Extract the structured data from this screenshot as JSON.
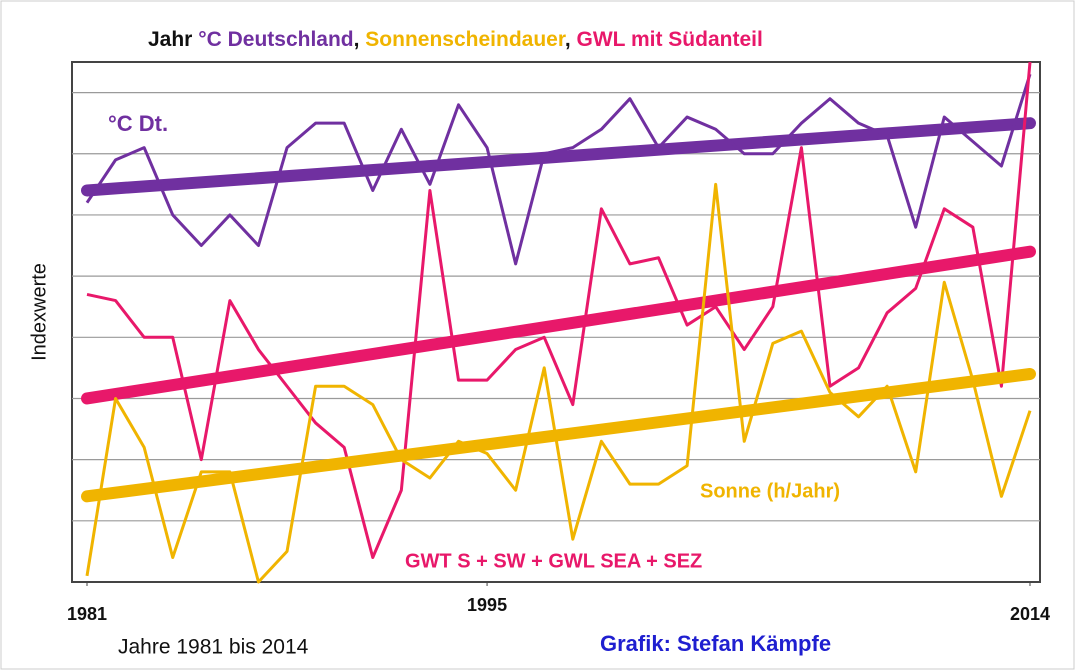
{
  "chart_data": {
    "type": "line",
    "title_parts": [
      {
        "text": "Jahr ",
        "color": "#111111"
      },
      {
        "text": "°C Deutschland",
        "color": "#7030a0"
      },
      {
        "text": ", ",
        "color": "#111111"
      },
      {
        "text": "Sonnenscheindauer",
        "color": "#f0b400"
      },
      {
        "text": ", ",
        "color": "#111111"
      },
      {
        "text": "GWL mit Südanteil",
        "color": "#e8186a"
      }
    ],
    "y_label": "Indexwerte",
    "x_note": "Jahre 1981 bis 2014",
    "credit": "Grafik: Stefan Kämpfe",
    "x": [
      1981,
      1982,
      1983,
      1984,
      1985,
      1986,
      1987,
      1988,
      1989,
      1990,
      1991,
      1992,
      1993,
      1994,
      1995,
      1996,
      1997,
      1998,
      1999,
      2000,
      2001,
      2002,
      2003,
      2004,
      2005,
      2006,
      2007,
      2008,
      2009,
      2010,
      2011,
      2012,
      2013,
      2014
    ],
    "xlim": [
      1981,
      2014
    ],
    "xticks": [
      1981,
      1995,
      2014
    ],
    "ylim": [
      0,
      8.5
    ],
    "yticks": [
      1,
      2,
      3,
      4,
      5,
      6,
      7,
      8
    ],
    "grid": true,
    "series": [
      {
        "name": "°C Dt.",
        "color": "#7030a0",
        "values": [
          6.2,
          6.9,
          7.1,
          6.0,
          5.5,
          6.0,
          5.5,
          7.1,
          7.5,
          7.5,
          6.4,
          7.4,
          6.5,
          7.8,
          7.1,
          5.2,
          7.0,
          7.1,
          7.4,
          7.9,
          7.1,
          7.6,
          7.4,
          7.0,
          7.0,
          7.5,
          7.9,
          7.5,
          7.3,
          5.8,
          7.6,
          7.2,
          6.8,
          8.3
        ],
        "trend": [
          6.4,
          7.5
        ]
      },
      {
        "name": "GWT S + SW + GWL SEA + SEZ",
        "color": "#e8186a",
        "values": [
          4.7,
          4.6,
          4.0,
          4.0,
          2.0,
          4.6,
          3.8,
          3.2,
          2.6,
          2.2,
          0.4,
          1.5,
          6.4,
          3.3,
          3.3,
          3.8,
          4.0,
          2.9,
          6.1,
          5.2,
          5.3,
          4.2,
          4.5,
          3.8,
          4.5,
          7.1,
          3.2,
          3.5,
          4.4,
          4.8,
          6.1,
          5.8,
          3.2,
          8.5
        ],
        "trend": [
          3.0,
          5.4
        ]
      },
      {
        "name": "Sonne (h/Jahr)",
        "color": "#f0b400",
        "values": [
          0.1,
          3.0,
          2.2,
          0.4,
          1.8,
          1.8,
          0.0,
          0.5,
          3.2,
          3.2,
          2.9,
          2.0,
          1.7,
          2.3,
          2.1,
          1.5,
          3.5,
          0.7,
          2.3,
          1.6,
          1.6,
          1.9,
          6.5,
          2.3,
          3.9,
          4.1,
          3.1,
          2.7,
          3.2,
          1.8,
          4.9,
          3.3,
          1.4,
          2.8
        ],
        "trend": [
          1.4,
          3.4
        ]
      }
    ]
  }
}
